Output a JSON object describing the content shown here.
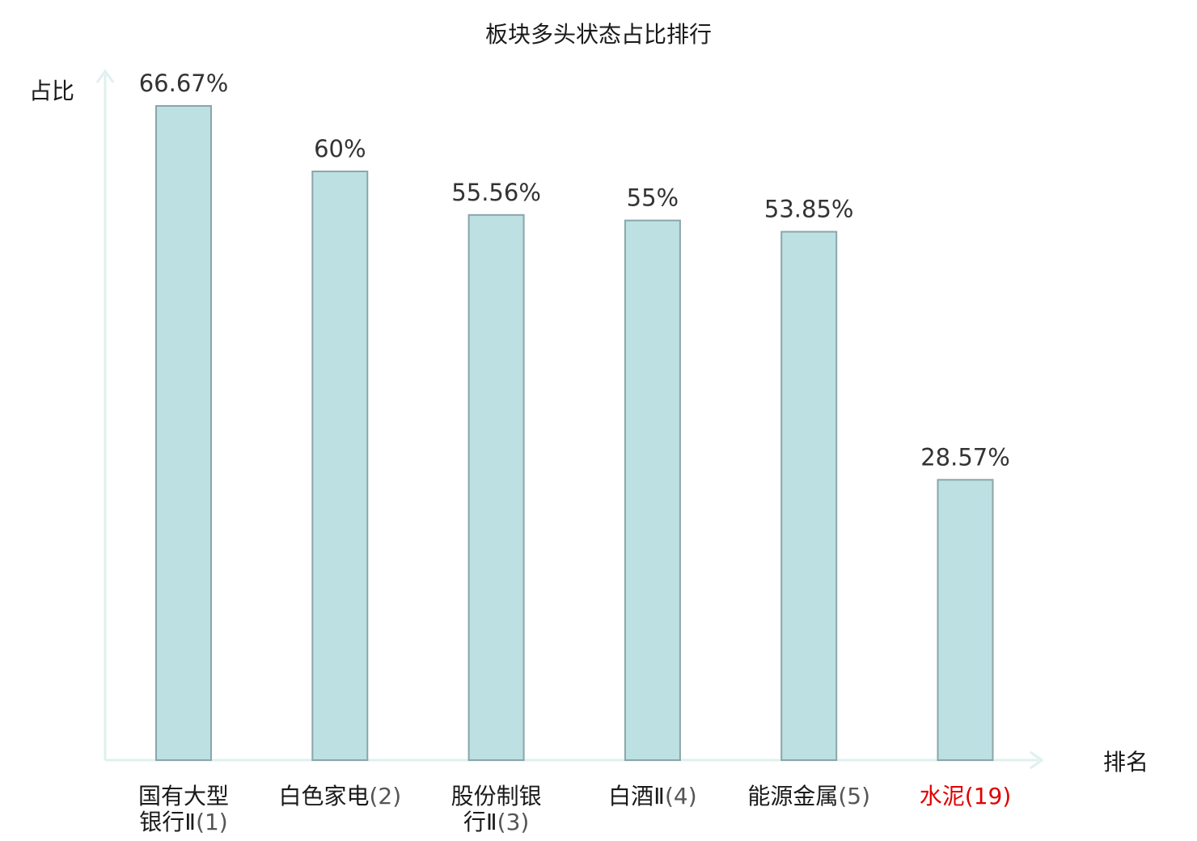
{
  "chart_data": {
    "type": "bar",
    "title": "板块多头状态占比排行",
    "ylabel": "占比",
    "xlabel": "排名",
    "ylim": [
      0,
      70
    ],
    "grid": false,
    "legend": "none",
    "categories": [
      {
        "name": "国有大型",
        "name2": "银行Ⅱ",
        "rank": "(1)",
        "highlight": false
      },
      {
        "name": "白色家电",
        "name2": "",
        "rank": "(2)",
        "highlight": false
      },
      {
        "name": "股份制银",
        "name2": "行Ⅱ",
        "rank": "(3)",
        "highlight": false
      },
      {
        "name": "白酒Ⅱ",
        "name2": "",
        "rank": "(4)",
        "highlight": false
      },
      {
        "name": "能源金属",
        "name2": "",
        "rank": "(5)",
        "highlight": false
      },
      {
        "name": "水泥",
        "name2": "",
        "rank": "(19)",
        "highlight": true
      }
    ],
    "values": [
      66.67,
      60,
      55.56,
      55,
      53.85,
      28.57
    ],
    "value_labels": [
      "66.67%",
      "60%",
      "55.56%",
      "55%",
      "53.85%",
      "28.57%"
    ]
  },
  "colors": {
    "bar_fill": "#bde0e3",
    "bar_stroke": "#8aa6a8",
    "axis": "#dff0ee",
    "highlight": "#e00000"
  }
}
